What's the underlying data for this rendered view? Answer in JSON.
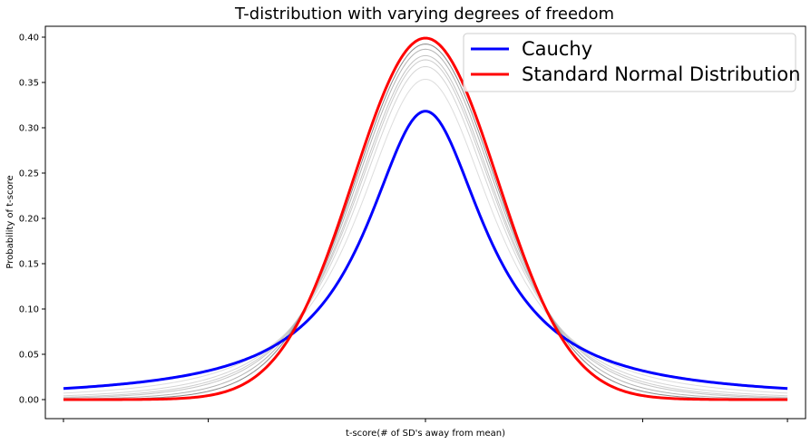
{
  "chart_data": {
    "type": "line",
    "title": "T-distribution with varying degrees of freedom",
    "xlabel": "t-score(# of SD's away from mean)",
    "ylabel": "Probability of t-score",
    "xlim": [
      -5.25,
      5.25
    ],
    "ylim": [
      -0.021,
      0.412
    ],
    "x_ticks": [
      -5,
      -3,
      0,
      3,
      5
    ],
    "x_tick_labels_shown": false,
    "y_ticks": [
      0.0,
      0.05,
      0.1,
      0.15,
      0.2,
      0.25,
      0.3,
      0.35,
      0.4
    ],
    "y_tick_labels": [
      "0.00",
      "0.05",
      "0.10",
      "0.15",
      "0.20",
      "0.25",
      "0.30",
      "0.35",
      "0.40"
    ],
    "grid": false,
    "legend_position": "top-right",
    "x_range": [
      -5,
      5
    ],
    "series": [
      {
        "name": "Cauchy",
        "distribution": "t",
        "df": 1,
        "color": "#0000ff",
        "width": 3,
        "in_legend": true
      },
      {
        "distribution": "t",
        "df": 2,
        "color": "#dddddd",
        "width": 1,
        "in_legend": false
      },
      {
        "distribution": "t",
        "df": 3,
        "color": "#d5d5d5",
        "width": 1,
        "in_legend": false
      },
      {
        "distribution": "t",
        "df": 4,
        "color": "#cccccc",
        "width": 1,
        "in_legend": false
      },
      {
        "distribution": "t",
        "df": 5,
        "color": "#c4c4c4",
        "width": 1,
        "in_legend": false
      },
      {
        "distribution": "t",
        "df": 8,
        "color": "#b4b4b4",
        "width": 1,
        "in_legend": false
      },
      {
        "distribution": "t",
        "df": 15,
        "color": "#8a8a8a",
        "width": 1,
        "in_legend": false
      },
      {
        "name": "Standard Normal Distribution",
        "distribution": "normal",
        "color": "#ff0000",
        "width": 3,
        "in_legend": true
      }
    ]
  }
}
